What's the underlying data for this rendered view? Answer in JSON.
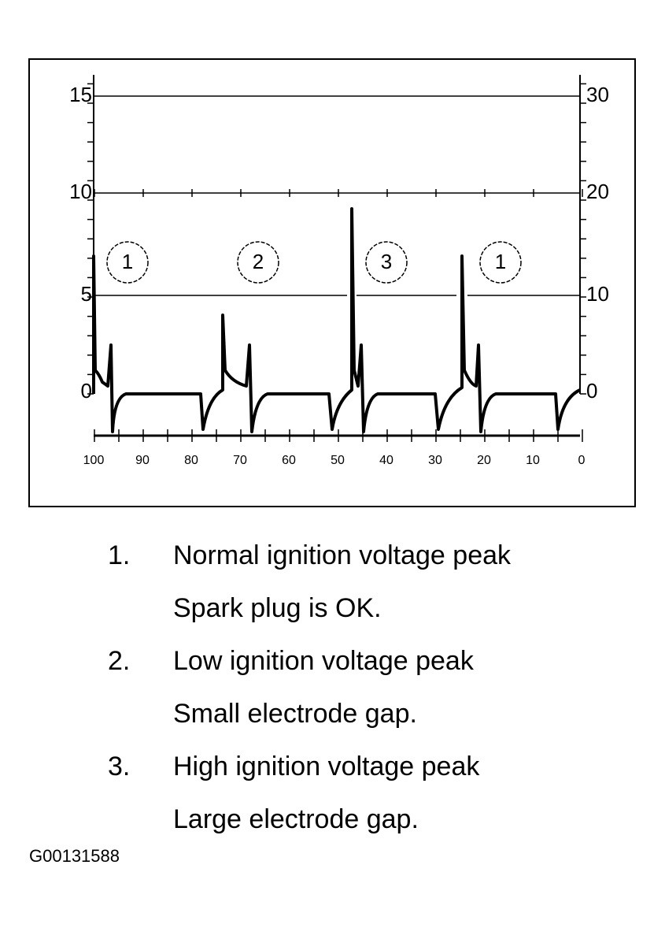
{
  "axes": {
    "left": [
      "15",
      "10",
      "5",
      "0"
    ],
    "right": [
      "30",
      "20",
      "10",
      "0"
    ],
    "bottom": [
      "100",
      "90",
      "80",
      "70",
      "60",
      "50",
      "40",
      "30",
      "20",
      "10",
      "0"
    ]
  },
  "markers": [
    "1",
    "2",
    "3",
    "1"
  ],
  "legend": [
    {
      "number": "1.",
      "lines": [
        "Normal ignition voltage peak",
        "Spark plug is OK."
      ]
    },
    {
      "number": "2.",
      "lines": [
        "Low ignition voltage peak",
        "Small electrode gap."
      ]
    },
    {
      "number": "3.",
      "lines": [
        "High ignition voltage peak",
        "Large electrode gap."
      ]
    }
  ],
  "figure_id": "G00131588"
}
